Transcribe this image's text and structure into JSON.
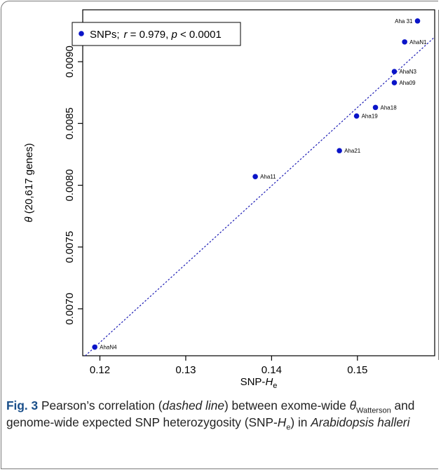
{
  "chart_data": {
    "type": "scatter",
    "xlabel_main": "SNP-",
    "xlabel_italic": "H",
    "xlabel_sub": "e",
    "ylabel_italic": "θ",
    "ylabel_rest": " (20,617 genes)",
    "xlim": [
      0.118,
      0.159
    ],
    "ylim": [
      0.00662,
      0.00942
    ],
    "x_ticks": [
      0.12,
      0.13,
      0.14,
      0.15
    ],
    "x_tick_labels": [
      "0.12",
      "0.13",
      "0.14",
      "0.15"
    ],
    "y_ticks": [
      0.007,
      0.0075,
      0.008,
      0.0085,
      0.009
    ],
    "y_tick_labels": [
      "0.0070",
      "0.0075",
      "0.0080",
      "0.0085",
      "0.0090"
    ],
    "points": [
      {
        "label": "Aha 31",
        "x": 0.157,
        "y": 0.00933,
        "label_side": "left"
      },
      {
        "label": "AhaN1",
        "x": 0.1555,
        "y": 0.00916,
        "label_side": "right"
      },
      {
        "label": "AhaN3",
        "x": 0.1543,
        "y": 0.00892,
        "label_side": "right"
      },
      {
        "label": "Aha09",
        "x": 0.1543,
        "y": 0.00883,
        "label_side": "right"
      },
      {
        "label": "Aha18",
        "x": 0.1521,
        "y": 0.00863,
        "label_side": "right"
      },
      {
        "label": "Aha19",
        "x": 0.1499,
        "y": 0.00856,
        "label_side": "right"
      },
      {
        "label": "Aha21",
        "x": 0.1479,
        "y": 0.00828,
        "label_side": "right"
      },
      {
        "label": "Aha11",
        "x": 0.1381,
        "y": 0.00807,
        "label_side": "right"
      },
      {
        "label": "AhaN4",
        "x": 0.1194,
        "y": 0.00669,
        "label_side": "right"
      }
    ],
    "fit_line": {
      "x": [
        0.1183,
        0.159
      ],
      "y": [
        0.00662,
        0.0092
      ]
    },
    "legend": {
      "series": "SNPs;",
      "r_symbol": "r",
      "r_text": " = 0.979, ",
      "p_symbol": "p",
      "p_text": " < 0.0001"
    },
    "legend_position": "top-left",
    "colors": {
      "points": "#0a14c8",
      "line": "#1a1ab4",
      "axis": "#000000"
    }
  },
  "caption": {
    "fig_label": "Fig. 3",
    "t1": " Pearson’s correlation (",
    "t2_italic": "dashed line",
    "t3": ") between exome-wide ",
    "theta": "θ",
    "theta_sub": "Watterson",
    "t4": " and genome-wide expected SNP heterozygosity (SNP-",
    "he_italic": "H",
    "he_sub": "e",
    "t5": ") in ",
    "species_italic": "Arabidopsis halleri"
  }
}
